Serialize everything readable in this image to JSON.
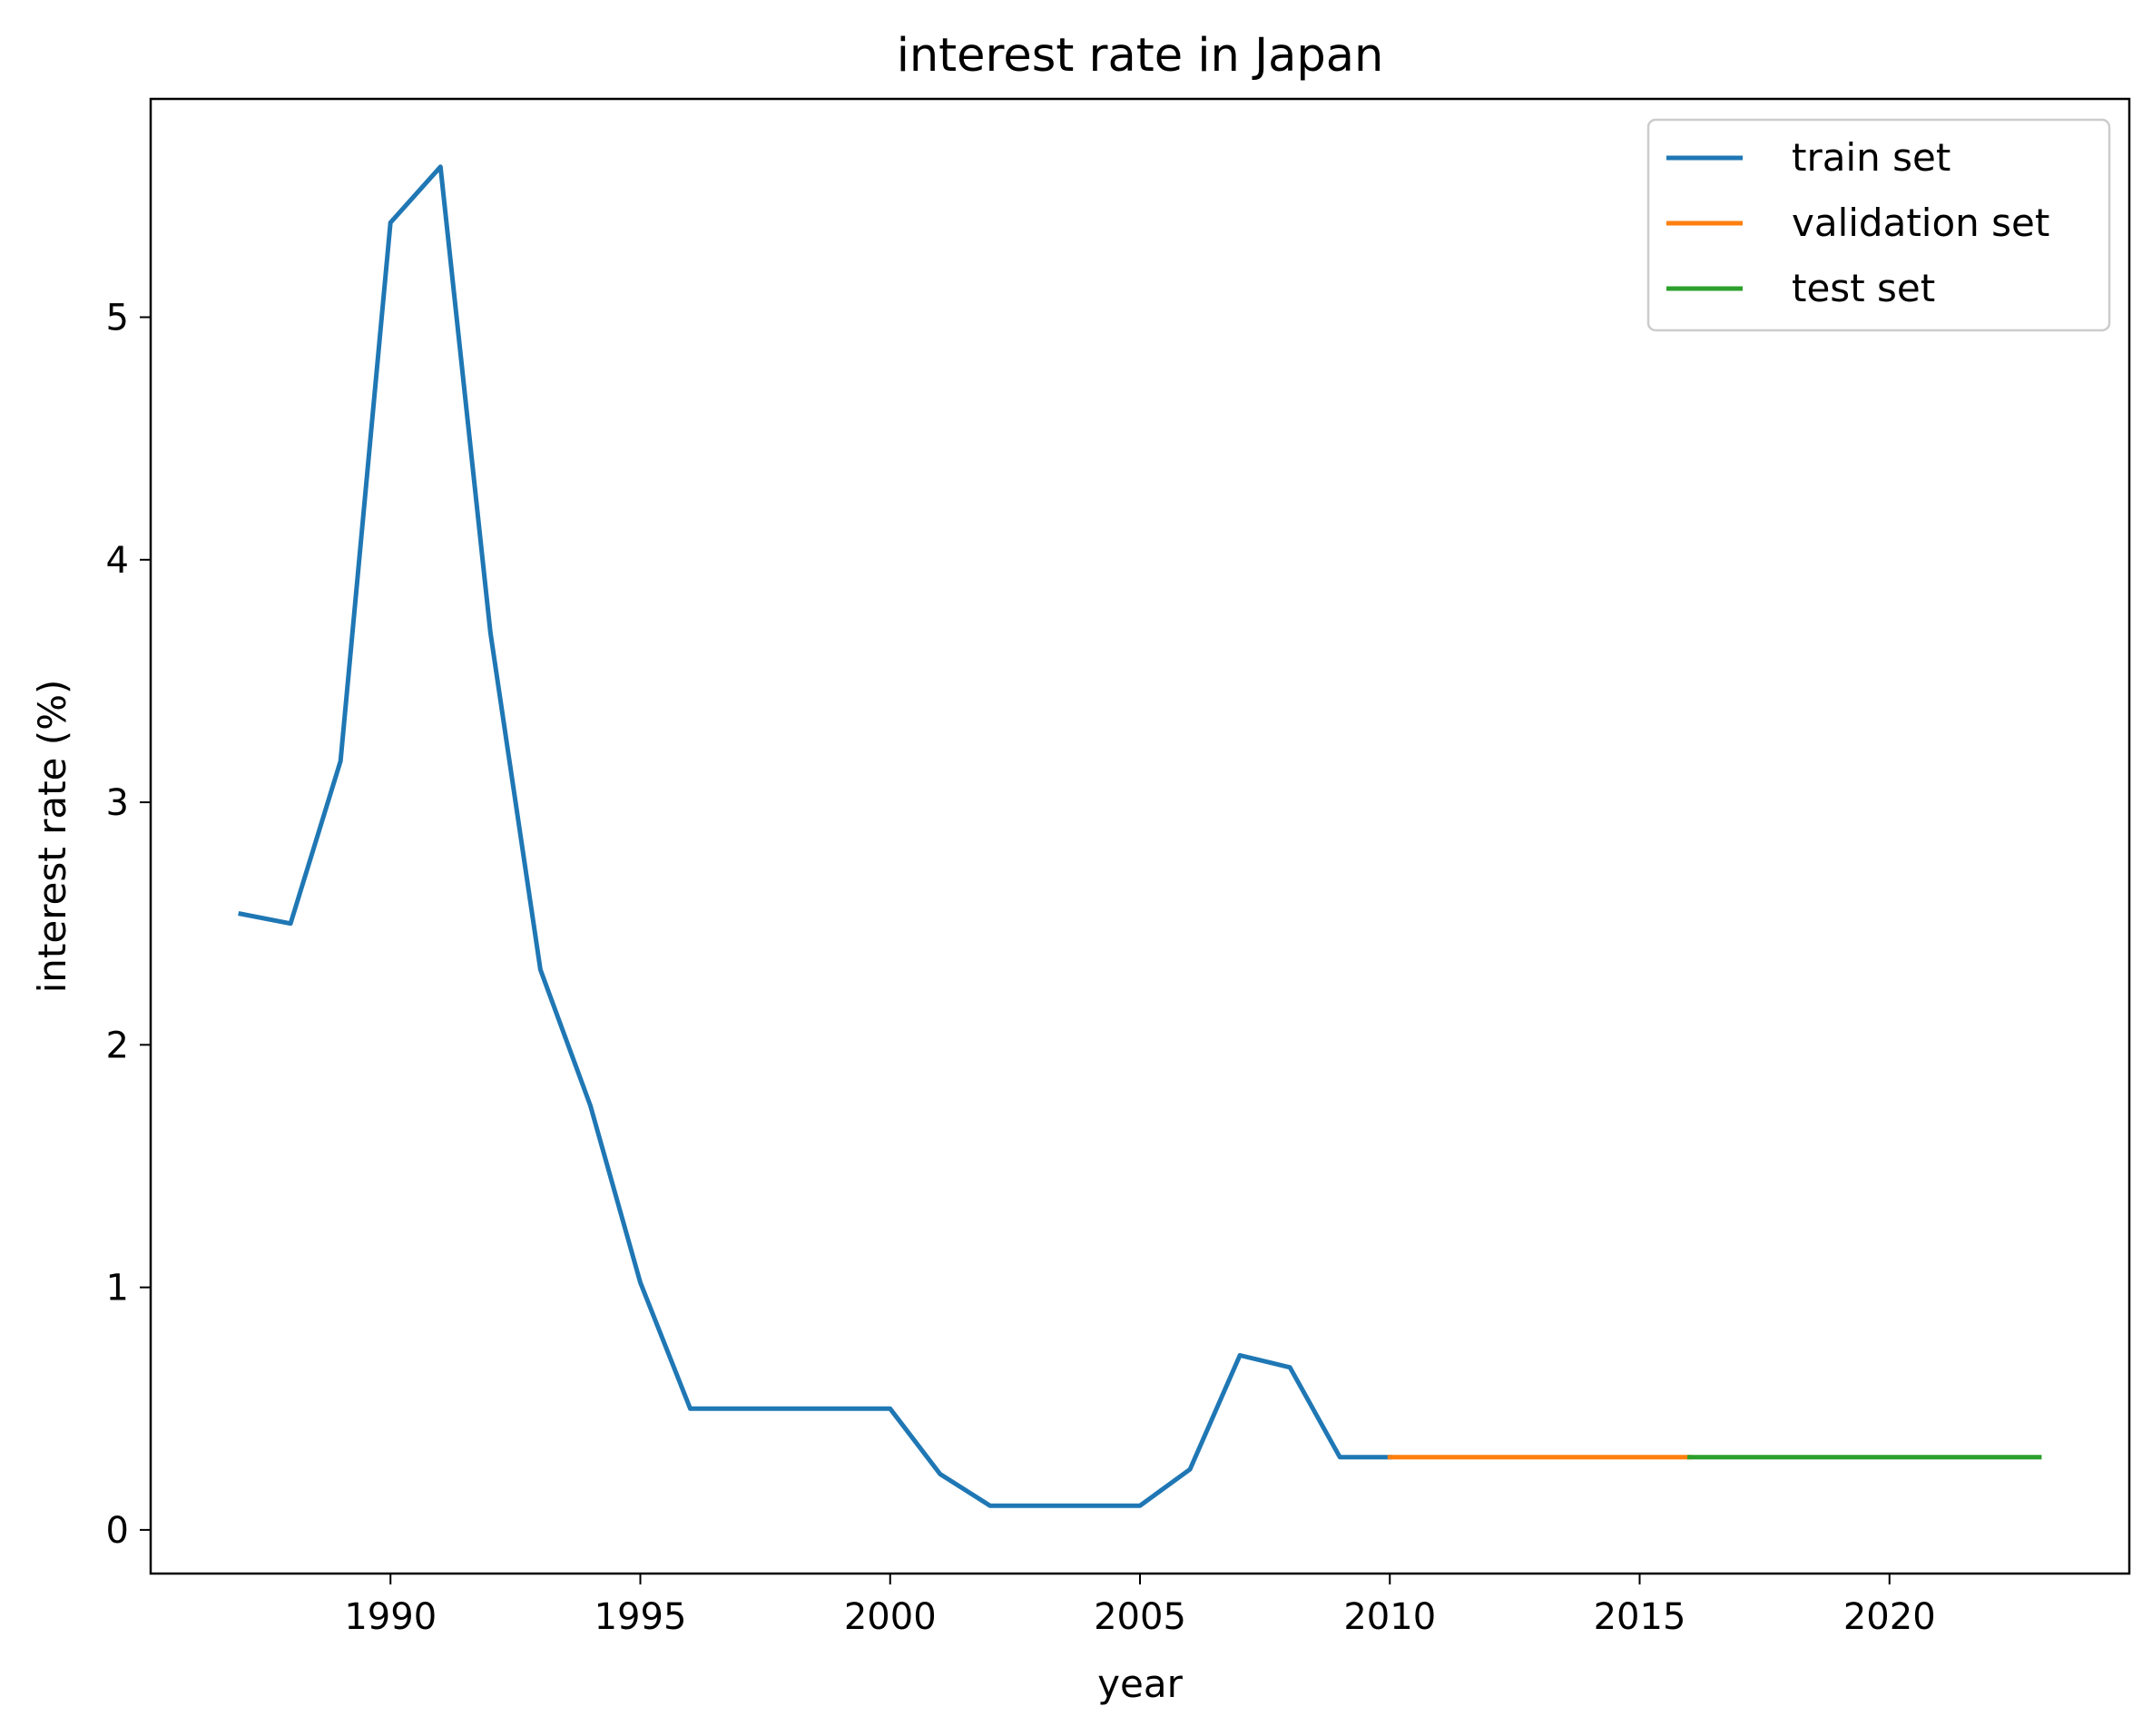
{
  "chart_data": {
    "type": "line",
    "title": "interest rate in Japan",
    "xlabel": "year",
    "ylabel": "interest rate (%)",
    "xlim": [
      1985.2,
      2024.8
    ],
    "ylim": [
      -0.18,
      5.9
    ],
    "x_ticks": [
      1990,
      1995,
      2000,
      2005,
      2010,
      2015,
      2020
    ],
    "y_ticks": [
      0,
      1,
      2,
      3,
      4,
      5
    ],
    "grid": false,
    "legend_position": "top-right",
    "series": [
      {
        "name": "train set",
        "color": "#1f77b4",
        "x": [
          1987,
          1988,
          1989,
          1990,
          1991,
          1992,
          1993,
          1994,
          1995,
          1996,
          1997,
          1998,
          1999,
          2000,
          2001,
          2002,
          2003,
          2004,
          2005,
          2006,
          2007,
          2008,
          2009,
          2010
        ],
        "y": [
          2.54,
          2.5,
          3.17,
          5.39,
          5.62,
          3.7,
          2.31,
          1.75,
          1.02,
          0.5,
          0.5,
          0.5,
          0.5,
          0.5,
          0.23,
          0.1,
          0.1,
          0.1,
          0.1,
          0.25,
          0.72,
          0.67,
          0.3,
          0.3
        ]
      },
      {
        "name": "validation set",
        "color": "#ff7f0e",
        "x": [
          2010,
          2011,
          2012,
          2013,
          2014,
          2015,
          2016
        ],
        "y": [
          0.3,
          0.3,
          0.3,
          0.3,
          0.3,
          0.3,
          0.3
        ]
      },
      {
        "name": "test set",
        "color": "#2ca02c",
        "x": [
          2016,
          2017,
          2018,
          2019,
          2020,
          2021,
          2022,
          2023
        ],
        "y": [
          0.3,
          0.3,
          0.3,
          0.3,
          0.3,
          0.3,
          0.3,
          0.3
        ]
      }
    ]
  }
}
